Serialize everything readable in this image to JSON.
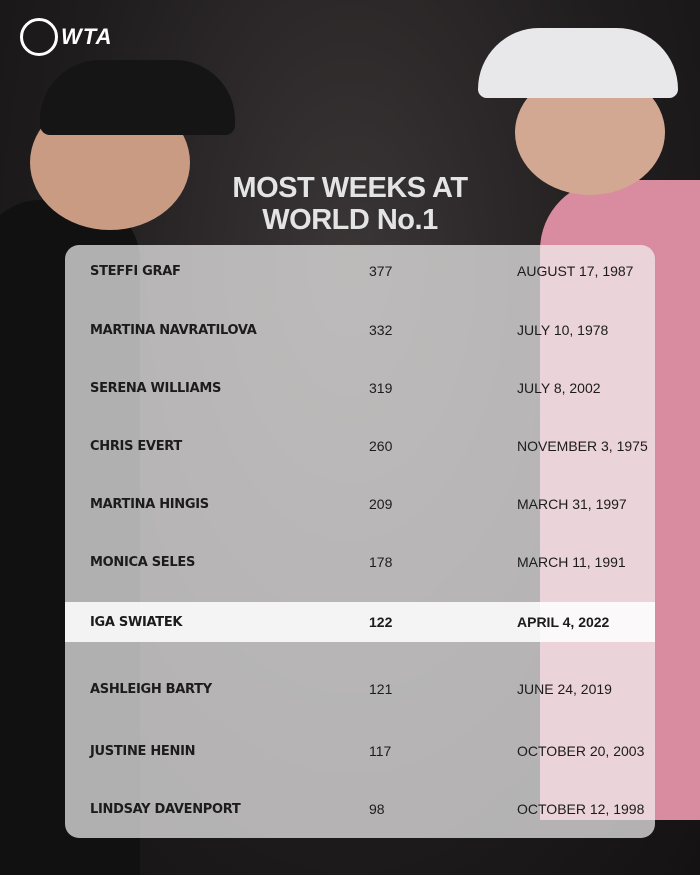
{
  "brand": {
    "logo_text": "WTA"
  },
  "title": {
    "line1": "MOST WEEKS AT",
    "line2": "WORLD No.1"
  },
  "colors": {
    "panel": "#f0eeee",
    "text": "#1c1c1c",
    "title": "#e4e4e4",
    "background": "#1c1a1b"
  },
  "rows": [
    {
      "name": "STEFFI GRAF",
      "weeks": "377",
      "date": "AUGUST 17, 1987"
    },
    {
      "name": "MARTINA NAVRATILOVA",
      "weeks": "332",
      "date": "JULY 10, 1978"
    },
    {
      "name": "SERENA WILLIAMS",
      "weeks": "319",
      "date": "JULY 8, 2002"
    },
    {
      "name": "CHRIS EVERT",
      "weeks": "260",
      "date": "NOVEMBER 3, 1975"
    },
    {
      "name": "MARTINA HINGIS",
      "weeks": "209",
      "date": "MARCH 31, 1997"
    },
    {
      "name": "MONICA SELES",
      "weeks": "178",
      "date": "MARCH 11, 1991"
    },
    {
      "name": "IGA SWIATEK",
      "weeks": "122",
      "date": "APRIL 4, 2022",
      "highlighted": true
    },
    {
      "name": "ASHLEIGH BARTY",
      "weeks": "121",
      "date": "JUNE 24, 2019"
    },
    {
      "name": "JUSTINE HENIN",
      "weeks": "117",
      "date": "OCTOBER 20, 2003"
    },
    {
      "name": "LINDSAY DAVENPORT",
      "weeks": "98",
      "date": "OCTOBER 12, 1998"
    }
  ]
}
